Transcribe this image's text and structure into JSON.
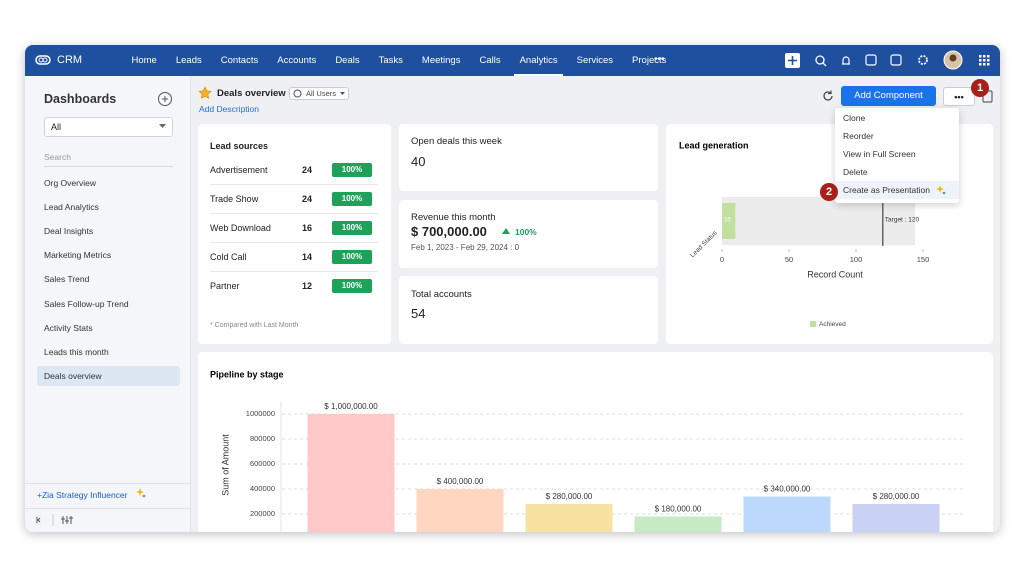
{
  "nav": {
    "brand": "CRM",
    "items": [
      "Home",
      "Leads",
      "Contacts",
      "Accounts",
      "Deals",
      "Tasks",
      "Meetings",
      "Calls",
      "Analytics",
      "Services",
      "Projects"
    ],
    "more": "•••"
  },
  "sidebar": {
    "title": "Dashboards",
    "filter": "All",
    "search": "Search",
    "items": [
      "Org Overview",
      "Lead Analytics",
      "Deal Insights",
      "Marketing Metrics",
      "Sales Trend",
      "Sales Follow-up Trend",
      "Activity Stats",
      "Leads this month",
      "Deals overview"
    ],
    "footer": "+Zia Strategy Influencer"
  },
  "header": {
    "title": "Deals overview",
    "filter": "All Users",
    "add_description": "Add Description",
    "add_component": "Add Component",
    "more": "•••"
  },
  "menu": {
    "items": [
      "Clone",
      "Reorder",
      "View in Full Screen",
      "Delete",
      "Create as Presentation"
    ]
  },
  "badges": [
    1,
    2
  ],
  "cards": {
    "lead_sources": {
      "title": "Lead sources",
      "rows": [
        {
          "name": "Advertisement",
          "count": 24,
          "change": "100%"
        },
        {
          "name": "Trade Show",
          "count": 24,
          "change": "100%"
        },
        {
          "name": "Web Download",
          "count": 16,
          "change": "100%"
        },
        {
          "name": "Cold Call",
          "count": 14,
          "change": "100%"
        },
        {
          "name": "Partner",
          "count": 12,
          "change": "100%"
        }
      ],
      "note": "* Compared with Last Month"
    },
    "open_deals": {
      "title": "Open deals this week",
      "value": 40
    },
    "revenue": {
      "title": "Revenue this month",
      "value": "$ 700,000.00",
      "change": "100%",
      "range": "Feb 1, 2023 - Feb 29, 2024 : 0"
    },
    "total_accounts": {
      "title": "Total accounts",
      "value": 54
    }
  },
  "chart_data": [
    {
      "type": "hbar",
      "title": "Lead generation",
      "categories": [
        "Lead Status"
      ],
      "series": [
        {
          "name": "Achieved",
          "color": "#c3dfa0",
          "values": [
            10
          ]
        }
      ],
      "target": {
        "value": 120,
        "label": "Target : 120"
      },
      "xlim": [
        0,
        150
      ],
      "xticks": [
        0,
        50,
        100,
        150
      ],
      "xlabel": "Record Count",
      "legend": "bottom"
    },
    {
      "type": "bar",
      "title": "Pipeline by stage",
      "categories": [
        null,
        null,
        null,
        null,
        null,
        null
      ],
      "values": [
        1000000,
        400000,
        280000,
        180000,
        340000,
        280000
      ],
      "value_labels": [
        "$ 1,000,000.00",
        "$ 400,000.00",
        "$ 280,000.00",
        "$ 180,000.00",
        "$ 340,000.00",
        "$ 280,000.00"
      ],
      "colors": [
        "#ffc9c9",
        "#ffd6bf",
        "#f8e2a2",
        "#c6eac3",
        "#bcd9fd",
        "#c9d2f4"
      ],
      "ylim": [
        0,
        1100000
      ],
      "yticks": [
        200000,
        400000,
        600000,
        800000,
        1000000
      ],
      "ylabel": "Sum of Amount",
      "grid": true
    }
  ]
}
